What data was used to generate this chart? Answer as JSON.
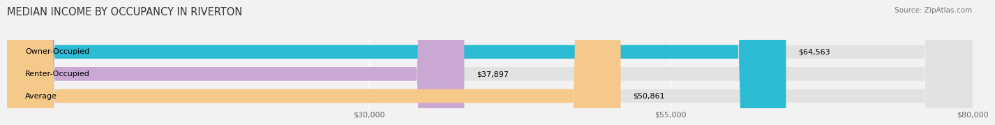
{
  "title": "MEDIAN INCOME BY OCCUPANCY IN RIVERTON",
  "source": "Source: ZipAtlas.com",
  "categories": [
    "Owner-Occupied",
    "Renter-Occupied",
    "Average"
  ],
  "values": [
    64563,
    37897,
    50861
  ],
  "bar_colors": [
    "#2bbcd4",
    "#c9a8d4",
    "#f5c98a"
  ],
  "bar_labels": [
    "$64,563",
    "$37,897",
    "$50,861"
  ],
  "xlim": [
    0,
    80000
  ],
  "xticks": [
    30000,
    55000,
    80000
  ],
  "xticklabels": [
    "$30,000",
    "$55,000",
    "$80,000"
  ],
  "background_color": "#f2f2f2",
  "bar_bg_color": "#e2e2e2",
  "title_fontsize": 10.5,
  "label_fontsize": 8,
  "tick_fontsize": 8,
  "source_fontsize": 7.5
}
